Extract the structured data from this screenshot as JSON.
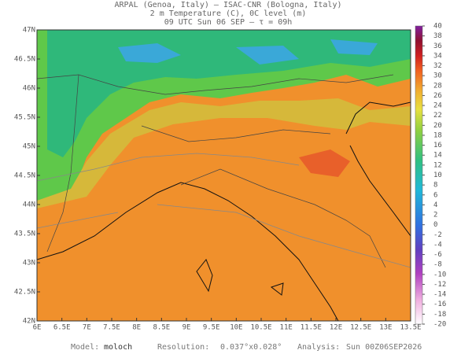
{
  "header": {
    "lines": [
      "ARPAL (Genoa, Italy)  —  ISAC-CNR (Bologna, Italy)",
      "2 m Temperature (C), 0C level (m)",
      "09 UTC Sun 06 SEP  —  τ = 09h"
    ]
  },
  "map": {
    "xlim": [
      6,
      13.5
    ],
    "ylim": [
      42,
      47
    ],
    "xticks": [
      {
        "value": 6,
        "label": "6E"
      },
      {
        "value": 6.5,
        "label": "6.5E"
      },
      {
        "value": 7,
        "label": "7E"
      },
      {
        "value": 7.5,
        "label": "7.5E"
      },
      {
        "value": 8,
        "label": "8E"
      },
      {
        "value": 8.5,
        "label": "8.5E"
      },
      {
        "value": 9,
        "label": "9E"
      },
      {
        "value": 9.5,
        "label": "9.5E"
      },
      {
        "value": 10,
        "label": "10E"
      },
      {
        "value": 10.5,
        "label": "10.5E"
      },
      {
        "value": 11,
        "label": "11E"
      },
      {
        "value": 11.5,
        "label": "11.5E"
      },
      {
        "value": 12,
        "label": "12E"
      },
      {
        "value": 12.5,
        "label": "12.5E"
      },
      {
        "value": 13,
        "label": "13E"
      },
      {
        "value": 13.5,
        "label": "13.5E"
      }
    ],
    "yticks": [
      {
        "value": 47,
        "label": "47N"
      },
      {
        "value": 46.5,
        "label": "46.5N"
      },
      {
        "value": 46,
        "label": "46N"
      },
      {
        "value": 45.5,
        "label": "45.5N"
      },
      {
        "value": 45,
        "label": "45N"
      },
      {
        "value": 44.5,
        "label": "44.5N"
      },
      {
        "value": 44,
        "label": "44N"
      },
      {
        "value": 43.5,
        "label": "43.5N"
      },
      {
        "value": 43,
        "label": "43N"
      },
      {
        "value": 42.5,
        "label": "42.5N"
      },
      {
        "value": 42,
        "label": "42N"
      }
    ]
  },
  "colorbar": {
    "range": [
      -20,
      40
    ],
    "ticks": [
      40,
      38,
      36,
      34,
      32,
      30,
      28,
      26,
      24,
      22,
      20,
      18,
      16,
      14,
      12,
      10,
      8,
      6,
      4,
      2,
      0,
      -2,
      -4,
      -6,
      -8,
      -10,
      -12,
      -14,
      -16,
      -18,
      -20
    ]
  },
  "footer": {
    "model_label": "Model:",
    "model": "moloch",
    "resolution_label": "Resolution:",
    "resolution": "0.037°x0.028°",
    "analysis_label": "Analysis:",
    "analysis": "Sun 00Z06SEP2026"
  }
}
